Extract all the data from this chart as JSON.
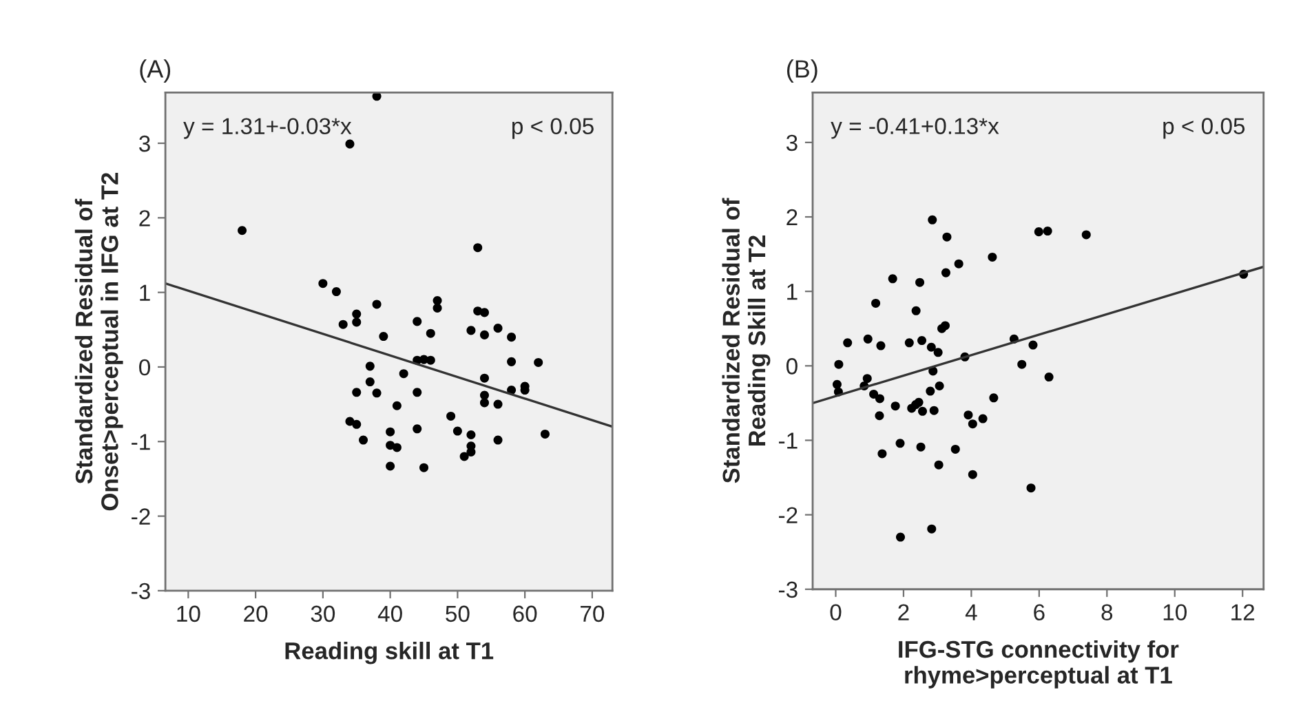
{
  "chart_data": [
    {
      "type": "scatter",
      "title": "(A)",
      "xlabel": "Reading skill at T1",
      "ylabel": "Standardized Residual of\nOnset>perceptual in IFG at T2",
      "annotations": [
        "y = 1.31+-0.03*x",
        "p < 0.05"
      ],
      "xlim": [
        6.6,
        73
      ],
      "ylim": [
        -3,
        3.68
      ],
      "xticks": [
        10,
        20,
        30,
        40,
        50,
        60,
        70
      ],
      "yticks": [
        -3,
        -2,
        -1,
        0,
        1,
        2,
        3
      ],
      "grid": false,
      "legend": false,
      "series": [
        {
          "marker": "circle",
          "color": "#000000",
          "x": [
            38,
            34,
            18,
            30,
            32,
            33,
            35,
            35,
            38,
            39,
            37,
            37,
            35,
            38,
            34,
            35,
            36,
            40,
            40,
            41,
            40,
            41,
            42,
            44,
            44,
            45,
            46,
            46,
            47,
            47,
            44,
            44,
            45,
            49,
            50,
            51,
            52,
            52,
            52,
            53,
            53,
            54,
            52,
            54,
            56,
            58,
            58,
            54,
            54,
            54,
            56,
            56,
            58,
            60,
            60,
            62,
            63
          ],
          "values": [
            3.63,
            2.99,
            1.83,
            1.12,
            1.01,
            0.57,
            0.71,
            0.6,
            0.84,
            0.41,
            0.01,
            -0.2,
            -0.34,
            -0.35,
            -0.73,
            -0.77,
            -0.98,
            -0.87,
            -1.05,
            -1.08,
            -1.33,
            -0.52,
            -0.09,
            0.61,
            0.09,
            0.1,
            0.09,
            0.45,
            0.89,
            0.79,
            -0.34,
            -0.83,
            -1.35,
            -0.66,
            -0.86,
            -1.2,
            -1.14,
            -1.06,
            -0.91,
            1.6,
            0.75,
            0.73,
            0.49,
            0.43,
            0.52,
            0.4,
            0.07,
            -0.15,
            -0.38,
            -0.48,
            -0.5,
            -0.98,
            -0.31,
            -0.26,
            -0.31,
            0.06,
            -0.9
          ]
        },
        {
          "type": "line",
          "marker": "none",
          "color": "#333333",
          "x": [
            6.6,
            73
          ],
          "values": [
            1.12,
            -0.8
          ]
        }
      ]
    },
    {
      "type": "scatter",
      "title": "(B)",
      "xlabel": "IFG-STG connectivity for\nrhyme>perceptual at T1",
      "ylabel": "Standardized Residual of\nReading Skill at T2",
      "annotations": [
        "y = -0.41+0.13*x",
        "p < 0.05"
      ],
      "xlim": [
        -0.68,
        12.62
      ],
      "ylim": [
        -3,
        3.67
      ],
      "xticks": [
        0,
        2,
        4,
        6,
        8,
        10,
        12
      ],
      "yticks": [
        -3,
        -2,
        -1,
        0,
        1,
        2,
        3
      ],
      "grid": false,
      "legend": false,
      "series": [
        {
          "marker": "circle",
          "color": "#000000",
          "x": [
            2.85,
            3.28,
            5.99,
            6.25,
            7.39,
            4.62,
            3.63,
            3.25,
            1.68,
            2.48,
            12.03,
            1.18,
            2.37,
            3.23,
            3.13,
            0.35,
            0.95,
            1.33,
            2.17,
            2.54,
            2.82,
            3.02,
            3.81,
            5.26,
            5.82,
            5.49,
            0.09,
            0.04,
            0.08,
            0.84,
            0.93,
            1.12,
            1.3,
            1.29,
            6.29,
            2.87,
            3.06,
            2.79,
            1.76,
            2.24,
            2.36,
            2.45,
            2.56,
            2.9,
            4.66,
            3.91,
            4.04,
            4.34,
            1.37,
            1.9,
            2.51,
            3.53,
            3.04,
            4.04,
            5.76,
            1.91,
            2.83
          ],
          "values": [
            1.96,
            1.73,
            1.8,
            1.81,
            1.76,
            1.46,
            1.37,
            1.25,
            1.17,
            1.12,
            1.23,
            0.84,
            0.74,
            0.54,
            0.5,
            0.31,
            0.36,
            0.27,
            0.31,
            0.34,
            0.25,
            0.18,
            0.12,
            0.36,
            0.28,
            0.02,
            0.02,
            -0.25,
            -0.35,
            -0.27,
            -0.17,
            -0.38,
            -0.44,
            -0.67,
            -0.15,
            -0.07,
            -0.27,
            -0.34,
            -0.54,
            -0.57,
            -0.52,
            -0.49,
            -0.61,
            -0.6,
            -0.43,
            -0.66,
            -0.78,
            -0.71,
            -1.18,
            -1.04,
            -1.09,
            -1.12,
            -1.33,
            -1.46,
            -1.64,
            -2.3,
            -2.19
          ]
        },
        {
          "type": "line",
          "marker": "none",
          "color": "#333333",
          "x": [
            -0.68,
            12.62
          ],
          "values": [
            -0.5,
            1.33
          ]
        }
      ]
    }
  ]
}
